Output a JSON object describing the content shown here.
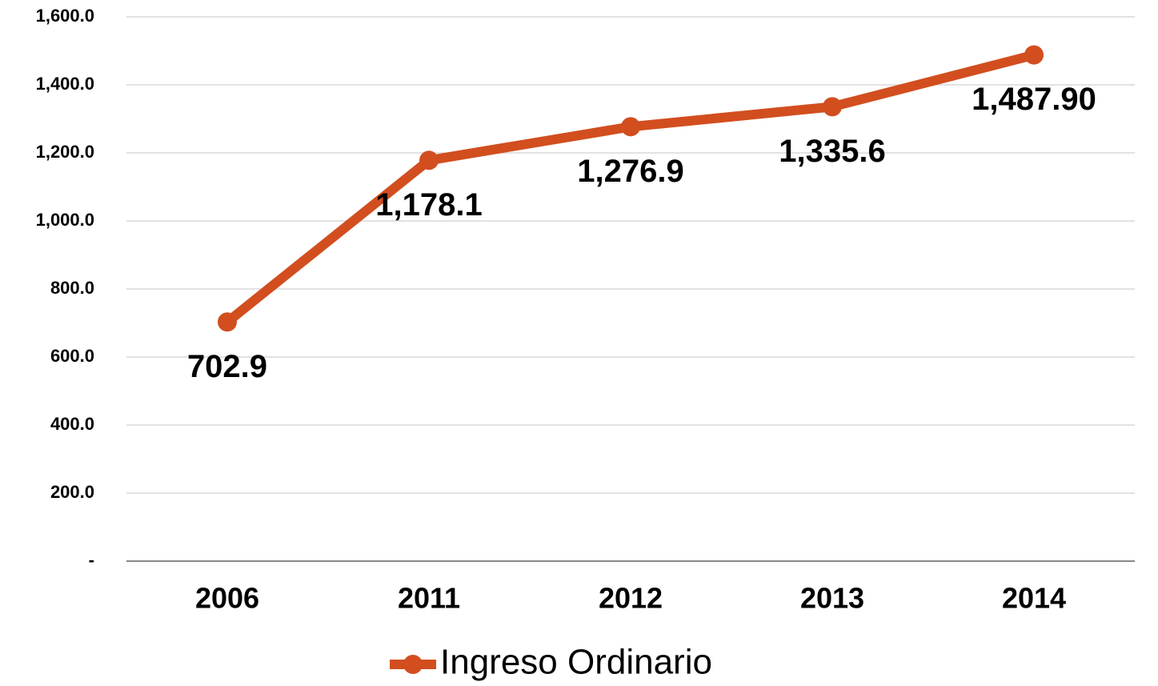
{
  "chart_data": {
    "type": "line",
    "categories": [
      "2006",
      "2011",
      "2012",
      "2013",
      "2014"
    ],
    "series": [
      {
        "name": "Ingreso Ordinario",
        "color": "#d24e1f",
        "values": [
          702.9,
          1178.1,
          1276.9,
          1335.6,
          1487.9
        ],
        "value_labels": [
          "702.9",
          "1,178.1",
          "1,276.9",
          "1,335.6",
          "1,487.90"
        ]
      }
    ],
    "ylim": [
      0,
      1600
    ],
    "yticks": [
      {
        "value": 0,
        "label": "-"
      },
      {
        "value": 200,
        "label": "200.0"
      },
      {
        "value": 400,
        "label": "400.0"
      },
      {
        "value": 600,
        "label": "600.0"
      },
      {
        "value": 800,
        "label": "800.0"
      },
      {
        "value": 1000,
        "label": "1,000.0"
      },
      {
        "value": 1200,
        "label": "1,200.0"
      },
      {
        "value": 1400,
        "label": "1,400.0"
      },
      {
        "value": 1600,
        "label": "1,600.0"
      }
    ],
    "grid": true,
    "legend": "bottom"
  }
}
